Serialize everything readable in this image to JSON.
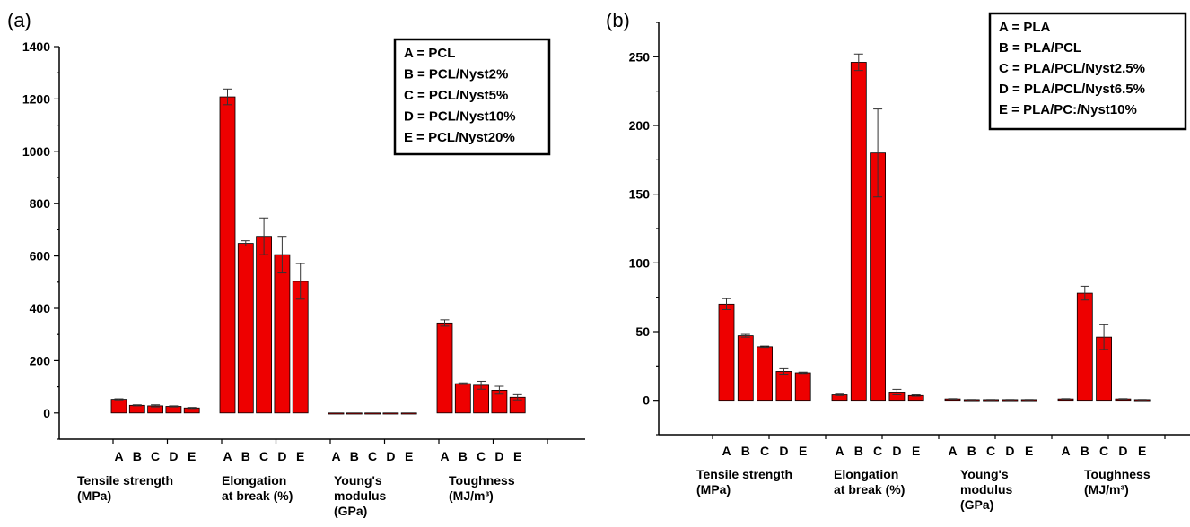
{
  "chart_data": [
    {
      "type": "bar",
      "panel_label": "(a)",
      "subcategories": [
        "A",
        "B",
        "C",
        "D",
        "E"
      ],
      "groups": [
        {
          "label_lines": [
            "Tensile strength",
            "(MPa)"
          ],
          "values": [
            52,
            29,
            27,
            25,
            19
          ],
          "errors": [
            2,
            2,
            4,
            2,
            2
          ]
        },
        {
          "label_lines": [
            "Elongation",
            "at break (%)"
          ],
          "values": [
            1208,
            648,
            675,
            605,
            503
          ],
          "errors": [
            30,
            10,
            70,
            70,
            68
          ]
        },
        {
          "label_lines": [
            "Young's",
            "modulus",
            "(GPa)"
          ],
          "values": [
            0,
            0,
            0,
            0,
            0
          ],
          "errors": [
            0,
            0,
            0,
            0,
            0
          ]
        },
        {
          "label_lines": [
            "Toughness",
            "(MJ/m³)"
          ],
          "values": [
            344,
            112,
            106,
            87,
            60
          ],
          "errors": [
            12,
            3,
            15,
            15,
            10
          ]
        }
      ],
      "ylim": [
        -100,
        1400
      ],
      "yticks": [
        0,
        200,
        400,
        600,
        800,
        1000,
        1200,
        1400
      ],
      "legend": [
        "A = PCL",
        "B = PCL/Nyst2%",
        "C = PCL/Nyst5%",
        "D = PCL/Nyst10%",
        "E = PCL/Nyst20%"
      ],
      "legend_position": "top-right",
      "bar_color": "#ee0000",
      "grid": false
    },
    {
      "type": "bar",
      "panel_label": "(b)",
      "subcategories": [
        "A",
        "B",
        "C",
        "D",
        "E"
      ],
      "groups": [
        {
          "label_lines": [
            "Tensile strength",
            "(MPa)"
          ],
          "values": [
            70,
            47,
            39,
            21,
            20
          ],
          "errors": [
            4,
            1,
            0.5,
            2,
            0.5
          ]
        },
        {
          "label_lines": [
            "Elongation",
            "at break (%)"
          ],
          "values": [
            4,
            246,
            180,
            6,
            3.5
          ],
          "errors": [
            0.5,
            6,
            32,
            2,
            0.5
          ]
        },
        {
          "label_lines": [
            "Young's",
            "modulus",
            "(GPa)"
          ],
          "values": [
            1,
            0.5,
            0.5,
            0.5,
            0.5
          ],
          "errors": [
            0.2,
            0.1,
            0.1,
            0.1,
            0.1
          ]
        },
        {
          "label_lines": [
            "Toughness",
            "(MJ/m³)"
          ],
          "values": [
            1,
            78,
            46,
            1,
            0.5
          ],
          "errors": [
            0.2,
            5,
            9,
            0.2,
            0.1
          ]
        }
      ],
      "ylim": [
        -25,
        275
      ],
      "yticks": [
        0,
        50,
        100,
        150,
        200,
        250
      ],
      "legend": [
        "A = PLA",
        "B = PLA/PCL",
        "C = PLA/PCL/Nyst2.5%",
        "D = PLA/PCL/Nyst6.5%",
        "E = PLA/PC:/Nyst10%"
      ],
      "legend_position": "top-right",
      "bar_color": "#ee0000",
      "grid": false
    }
  ]
}
